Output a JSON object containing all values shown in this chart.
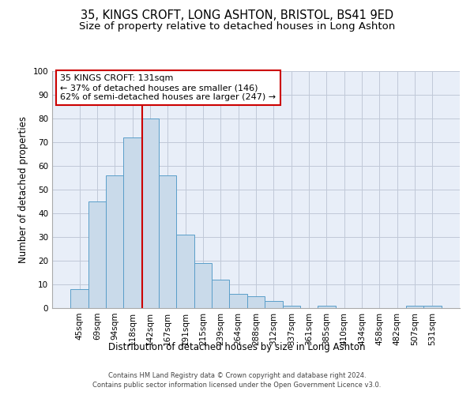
{
  "title": "35, KINGS CROFT, LONG ASHTON, BRISTOL, BS41 9ED",
  "subtitle": "Size of property relative to detached houses in Long Ashton",
  "xlabel": "Distribution of detached houses by size in Long Ashton",
  "ylabel": "Number of detached properties",
  "footnote1": "Contains HM Land Registry data © Crown copyright and database right 2024.",
  "footnote2": "Contains public sector information licensed under the Open Government Licence v3.0.",
  "bar_labels": [
    "45sqm",
    "69sqm",
    "94sqm",
    "118sqm",
    "142sqm",
    "167sqm",
    "191sqm",
    "215sqm",
    "239sqm",
    "264sqm",
    "288sqm",
    "312sqm",
    "337sqm",
    "361sqm",
    "385sqm",
    "410sqm",
    "434sqm",
    "458sqm",
    "482sqm",
    "507sqm",
    "531sqm"
  ],
  "bar_values": [
    8,
    45,
    56,
    72,
    80,
    56,
    31,
    19,
    12,
    6,
    5,
    3,
    1,
    0,
    1,
    0,
    0,
    0,
    0,
    1,
    1
  ],
  "bar_color": "#c9daea",
  "bar_edgecolor": "#5a9ec9",
  "bar_width": 1.0,
  "ylim": [
    0,
    100
  ],
  "yticks": [
    0,
    10,
    20,
    30,
    40,
    50,
    60,
    70,
    80,
    90,
    100
  ],
  "grid_color": "#c0c8d8",
  "bg_color": "#e8eef8",
  "vline_color": "#cc0000",
  "annotation_text": "35 KINGS CROFT: 131sqm\n← 37% of detached houses are smaller (146)\n62% of semi-detached houses are larger (247) →",
  "annotation_box_color": "#ffffff",
  "annotation_box_edgecolor": "#cc0000",
  "title_fontsize": 10.5,
  "subtitle_fontsize": 9.5,
  "axis_label_fontsize": 8.5,
  "tick_fontsize": 7.5,
  "annotation_fontsize": 8,
  "footnote_fontsize": 6
}
